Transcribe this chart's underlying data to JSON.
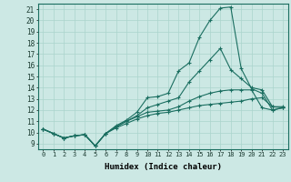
{
  "xlabel": "Humidex (Indice chaleur)",
  "bg_color": "#cce8e4",
  "grid_color": "#aad4cc",
  "line_color": "#1a6e60",
  "xlim": [
    -0.5,
    23.5
  ],
  "ylim": [
    8.5,
    21.5
  ],
  "xticks": [
    0,
    1,
    2,
    3,
    4,
    5,
    6,
    7,
    8,
    9,
    10,
    11,
    12,
    13,
    14,
    15,
    16,
    17,
    18,
    19,
    20,
    21,
    22,
    23
  ],
  "yticks": [
    9,
    10,
    11,
    12,
    13,
    14,
    15,
    16,
    17,
    18,
    19,
    20,
    21
  ],
  "line_main_x": [
    0,
    1,
    2,
    3,
    4,
    5,
    6,
    7,
    8,
    9,
    10,
    11,
    12,
    13,
    14,
    15,
    16,
    17,
    18,
    19,
    20,
    21,
    22,
    23
  ],
  "line_main_y": [
    10.3,
    9.9,
    9.5,
    9.7,
    9.8,
    8.8,
    9.9,
    10.6,
    11.1,
    11.8,
    13.1,
    13.2,
    13.5,
    15.5,
    16.2,
    18.5,
    20.0,
    21.1,
    21.2,
    15.7,
    13.9,
    13.5,
    12.0,
    12.2
  ],
  "line_mid_x": [
    0,
    1,
    2,
    3,
    4,
    5,
    6,
    7,
    8,
    9,
    10,
    11,
    12,
    13,
    14,
    15,
    16,
    17,
    18,
    19,
    20,
    21,
    22,
    23
  ],
  "line_mid_y": [
    10.3,
    9.9,
    9.5,
    9.7,
    9.8,
    8.8,
    9.9,
    10.5,
    11.0,
    11.5,
    12.2,
    12.5,
    12.8,
    13.1,
    14.5,
    15.5,
    16.5,
    17.5,
    15.6,
    14.8,
    14.0,
    13.8,
    12.3,
    12.3
  ],
  "line_low1_x": [
    0,
    1,
    2,
    3,
    4,
    5,
    6,
    7,
    8,
    9,
    10,
    11,
    12,
    13,
    14,
    15,
    16,
    17,
    18,
    19,
    20,
    21,
    22,
    23
  ],
  "line_low1_y": [
    10.3,
    9.9,
    9.5,
    9.7,
    9.8,
    8.8,
    9.9,
    10.5,
    11.0,
    11.4,
    11.8,
    11.9,
    12.0,
    12.3,
    12.8,
    13.2,
    13.5,
    13.7,
    13.8,
    13.8,
    13.8,
    12.2,
    12.0,
    12.2
  ],
  "line_low2_x": [
    0,
    1,
    2,
    3,
    4,
    5,
    6,
    7,
    8,
    9,
    10,
    11,
    12,
    13,
    14,
    15,
    16,
    17,
    18,
    19,
    20,
    21,
    22,
    23
  ],
  "line_low2_y": [
    10.3,
    9.9,
    9.5,
    9.7,
    9.8,
    8.8,
    9.9,
    10.4,
    10.8,
    11.2,
    11.5,
    11.7,
    11.8,
    12.0,
    12.2,
    12.4,
    12.5,
    12.6,
    12.7,
    12.8,
    13.0,
    13.1,
    12.3,
    12.2
  ],
  "marker": "+",
  "markersize": 3,
  "linewidth": 0.8
}
